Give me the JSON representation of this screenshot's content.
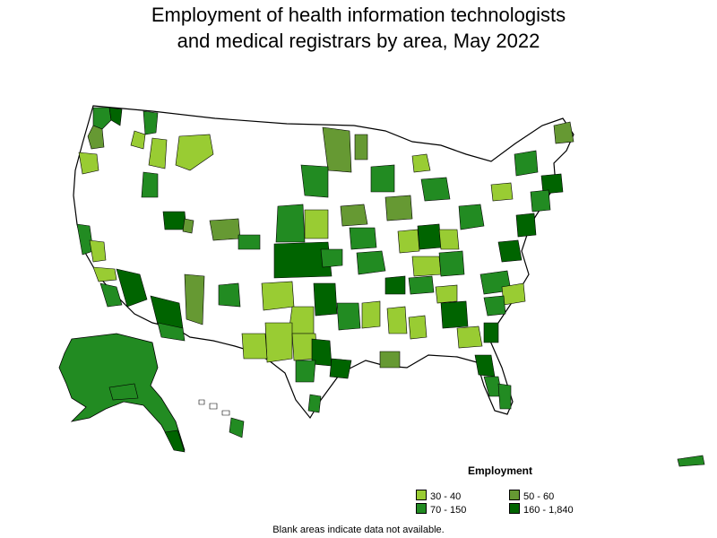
{
  "title": {
    "line1": "Employment of health information technologists",
    "line2": "and medical registrars by area, May 2022"
  },
  "legend": {
    "title": "Employment",
    "items": [
      {
        "label": "30 - 40",
        "color": "#99cc33"
      },
      {
        "label": "50 - 60",
        "color": "#669933"
      },
      {
        "label": "70 - 150",
        "color": "#228b22"
      },
      {
        "label": "160 - 1,840",
        "color": "#006400"
      }
    ]
  },
  "footnote": "Blank areas indicate data not available.",
  "colors": {
    "no_data": "#ffffff",
    "outline": "#000000"
  }
}
